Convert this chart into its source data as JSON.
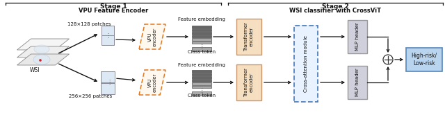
{
  "stage1_label": "Stage 1",
  "stage1_sub": "VPU Feature Encoder",
  "stage2_label": "Stage 2",
  "stage2_sub": "WSI classifier with CrossViT",
  "wsi_label": "WSI",
  "patch1_label": "128×128 patches",
  "patch2_label": "256×256 patches",
  "vpu_label": "VPU\nencoder",
  "feat_embed_label": "Feature embedding",
  "class_token_label": "Class token",
  "transformer_label": "Transformer\nencoder",
  "cross_attn_label": "Cross-attention module",
  "mlp_label": "MLP header",
  "output_label": "High-risk/\nLow-risk",
  "bg_color": "#ffffff",
  "transformer_fill": "#f5dfc0",
  "transformer_edge": "#c8956a",
  "cross_attn_fill": "#e8f3ff",
  "cross_attn_edge": "#4477bb",
  "mlp_fill": "#d0d0dd",
  "mlp_edge": "#999999",
  "output_fill": "#b8d4ee",
  "output_edge": "#5588bb",
  "vpu_edge": "#e07820",
  "stage_line_color": "#222222",
  "arrow_color": "#111111",
  "text_color": "#111111",
  "embed_dark": "#666666",
  "embed_light": "#aaaaaa"
}
